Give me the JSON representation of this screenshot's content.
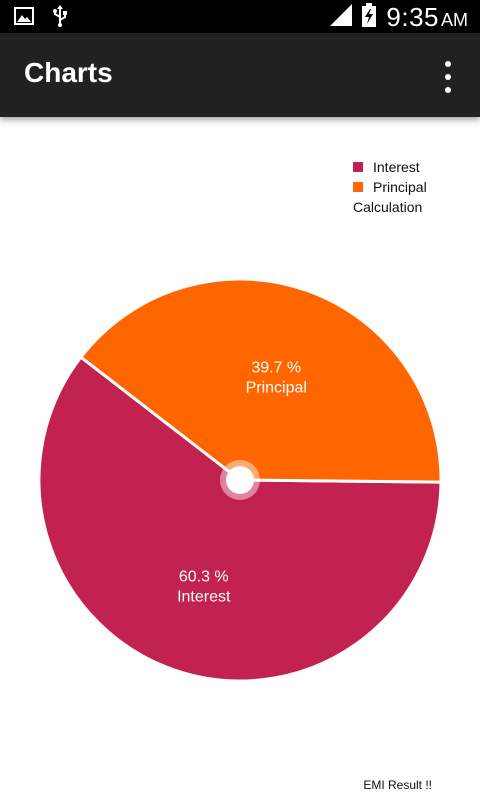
{
  "status_bar": {
    "time": "9:35",
    "ampm": "AM",
    "icons": [
      "image-icon",
      "usb-icon",
      "signal-icon",
      "battery-charging-icon"
    ]
  },
  "app_bar": {
    "title": "Charts",
    "overflow_icon": "more-vert-icon"
  },
  "legend": {
    "entries": [
      {
        "label": "Interest",
        "color": "#C2224F"
      },
      {
        "label": "Principal",
        "color": "#FF6600"
      }
    ],
    "title": "Calculation"
  },
  "chart_data": {
    "type": "pie",
    "series": [
      {
        "name": "Interest",
        "value": 60.3,
        "percent_label": "60.3 %",
        "color": "#C2224F"
      },
      {
        "name": "Principal",
        "value": 39.7,
        "percent_label": "39.7 %",
        "color": "#FF6600"
      }
    ],
    "legend_position": "top-right",
    "description": "EMI Result !!"
  }
}
